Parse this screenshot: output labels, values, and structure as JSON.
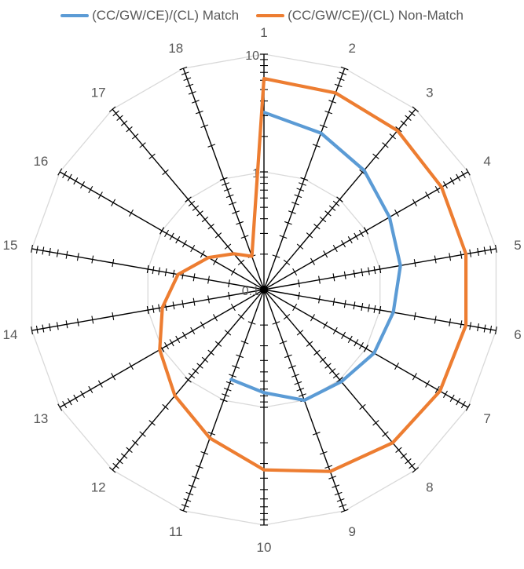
{
  "chart_data": {
    "type": "radar",
    "scale": "log",
    "rlim": [
      0.1,
      10
    ],
    "tick_labels": [
      "0.1",
      "1",
      "10"
    ],
    "ticks": [
      0.1,
      1,
      10
    ],
    "categories": [
      "1",
      "2",
      "3",
      "4",
      "5",
      "6",
      "7",
      "8",
      "9",
      "10",
      "11",
      "12",
      "13",
      "14",
      "15",
      "16",
      "17",
      "18"
    ],
    "legend_position": "top",
    "grid": true,
    "series": [
      {
        "name": "(CC/GW/CE)/(CL) Match",
        "color": "#5B9BD5",
        "values": [
          3.2,
          2.6,
          2.1,
          1.7,
          1.5,
          1.3,
          1.2,
          1.05,
          1.0,
          0.75,
          0.65,
          null,
          null,
          null,
          null,
          null,
          null,
          null
        ]
      },
      {
        "name": "(CC/GW/CE)/(CL) Non-Match",
        "color": "#ED7D31",
        "values": [
          6.2,
          6.0,
          5.8,
          5.5,
          5.5,
          5.5,
          5.3,
          5.0,
          4.4,
          3.4,
          2.2,
          1.5,
          1.05,
          0.75,
          0.55,
          0.35,
          0.25,
          0.2
        ]
      }
    ]
  }
}
